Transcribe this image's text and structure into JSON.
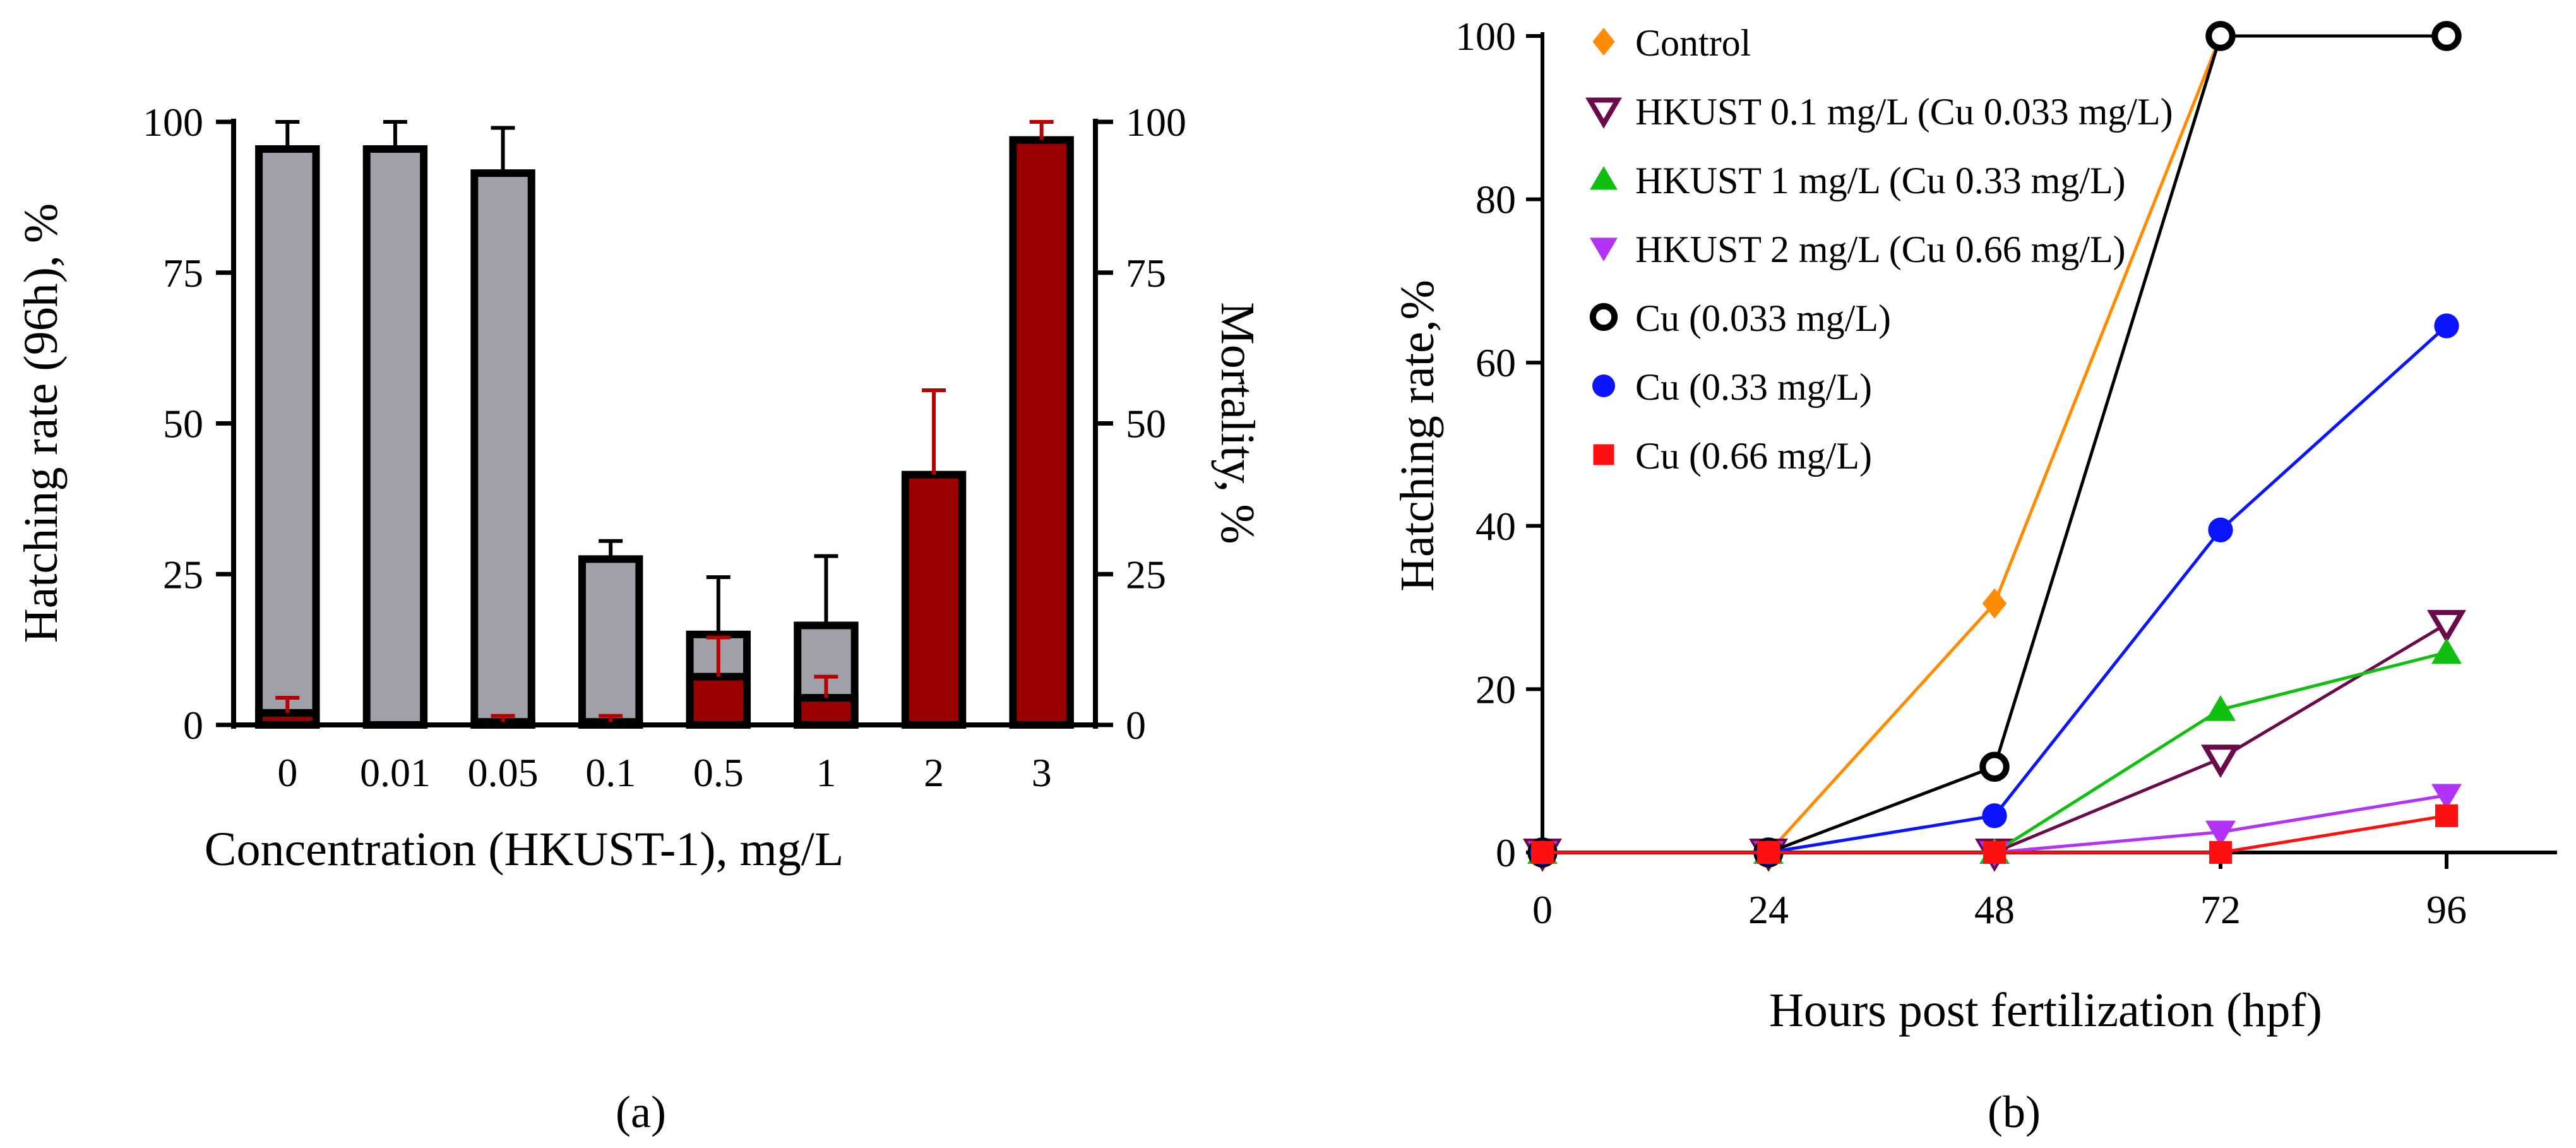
{
  "panels": {
    "a": {
      "label": "(a)"
    },
    "b": {
      "label": "(b)"
    }
  },
  "colors": {
    "hatching_bar": "#a0a0a8",
    "mortality_bar": "#9b0000",
    "mortality_error": "#b80000",
    "control": "#ff8c00",
    "hkust_0_1": "#6b0a4a",
    "hkust_1": "#11bf11",
    "hkust_2": "#b233f5",
    "cu_0_033": "#000000",
    "cu_0_33": "#0a14ff",
    "cu_0_66": "#ff1010"
  },
  "chart_data": [
    {
      "panel": "a",
      "type": "bar",
      "xlabel": "Concentration (HKUST-1), mg/L",
      "ylabel": "Hatching rate (96h), %",
      "ylabel_right": "Mortality, %",
      "categories": [
        "0",
        "0.01",
        "0.05",
        "0.1",
        "0.5",
        "1",
        "2",
        "3"
      ],
      "ylim": [
        0,
        100
      ],
      "yticks": [
        "0",
        "25",
        "50",
        "75",
        "100"
      ],
      "yticks_right": [
        "0",
        "25",
        "50",
        "75",
        "100"
      ],
      "series": [
        {
          "id": "hatching",
          "axis": "left",
          "values": [
            95.5,
            95.5,
            91.5,
            27.5,
            15,
            16.5,
            null,
            null
          ],
          "error": [
            4.5,
            4.5,
            7.5,
            3,
            9.5,
            11.5,
            null,
            null
          ]
        },
        {
          "id": "mortality",
          "axis": "right",
          "values": [
            2,
            0,
            0.5,
            0.5,
            8,
            4.5,
            41.5,
            97
          ],
          "error": [
            2.5,
            0,
            1,
            1,
            6.5,
            3.5,
            14,
            3
          ]
        }
      ]
    },
    {
      "panel": "b",
      "type": "line",
      "xlabel": "Hours post fertilization (hpf)",
      "ylabel": "Hatching rate,%",
      "x": [
        0,
        24,
        48,
        72,
        96
      ],
      "xticks": [
        "0",
        "24",
        "48",
        "72",
        "96"
      ],
      "ylim": [
        0,
        100
      ],
      "yticks": [
        "0",
        "20",
        "40",
        "60",
        "80",
        "100"
      ],
      "legend_position": "top-left",
      "series": [
        {
          "id": "control",
          "name": "Control",
          "marker": "diamond",
          "values": [
            0,
            0,
            30.5,
            100,
            100
          ]
        },
        {
          "id": "hkust_0_1",
          "name": "HKUST 0.1 mg/L (Cu 0.033 mg/L)",
          "marker": "triangle-down-open",
          "values": [
            0,
            0,
            0,
            11.5,
            28
          ]
        },
        {
          "id": "hkust_1",
          "name": "HKUST 1 mg/L (Cu 0.33 mg/L)",
          "marker": "triangle-up",
          "values": [
            0,
            0,
            0,
            17.5,
            24.5
          ]
        },
        {
          "id": "hkust_2",
          "name": "HKUST 2 mg/L (Cu 0.66 mg/L)",
          "marker": "triangle-down",
          "values": [
            0,
            0,
            0,
            2.5,
            7
          ]
        },
        {
          "id": "cu_0_033",
          "name": "Cu (0.033 mg/L)",
          "marker": "circle-open",
          "values": [
            0,
            0,
            10.5,
            100,
            100
          ]
        },
        {
          "id": "cu_0_33",
          "name": "Cu (0.33 mg/L)",
          "marker": "circle",
          "values": [
            0,
            0,
            4.5,
            39.5,
            64.5
          ]
        },
        {
          "id": "cu_0_66",
          "name": "Cu (0.66 mg/L)",
          "marker": "square",
          "values": [
            0,
            0,
            0,
            0,
            4.5
          ]
        }
      ]
    }
  ]
}
